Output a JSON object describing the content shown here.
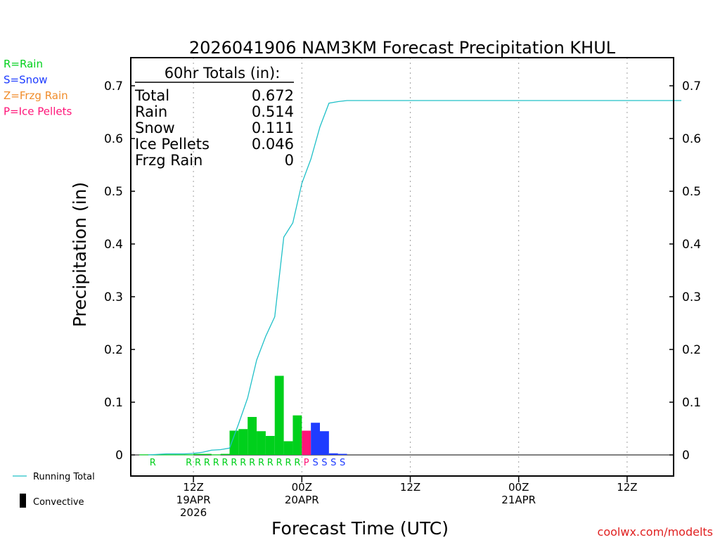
{
  "chart_data": {
    "type": "bar",
    "title": "2026041906 NAM3KM Forecast Precipitation KHUL",
    "xlabel": "Forecast Time (UTC)",
    "ylabel": "Precipitation (in)",
    "x_unit": "hours after 2026041906",
    "xlim": [
      0,
      60
    ],
    "ylim": [
      -0.04,
      0.74
    ],
    "y_ticks": [
      0,
      0.1,
      0.2,
      0.3,
      0.4,
      0.5,
      0.6,
      0.7
    ],
    "y_tick_labels": [
      "0",
      "0.1",
      "0.2",
      "0.3",
      "0.4",
      "0.5",
      "0.6",
      "0.7"
    ],
    "grid": "vertical dotted at 12Z/00Z",
    "x_ticks": [
      {
        "x": 6,
        "lines": [
          "12Z",
          "19APR",
          "2026"
        ]
      },
      {
        "x": 18,
        "lines": [
          "00Z",
          "20APR"
        ]
      },
      {
        "x": 30,
        "lines": [
          "12Z"
        ]
      },
      {
        "x": 42,
        "lines": [
          "00Z",
          "21APR"
        ]
      },
      {
        "x": 54,
        "lines": [
          "12Z"
        ]
      }
    ],
    "bars": [
      {
        "x": 1,
        "value": 0.001,
        "type": "rain"
      },
      {
        "x": 2,
        "value": 0.001,
        "type": "rain"
      },
      {
        "x": 3,
        "value": 0.001,
        "type": "rain"
      },
      {
        "x": 4,
        "value": 0.001,
        "type": "rain"
      },
      {
        "x": 5,
        "value": 0.001,
        "type": "rain"
      },
      {
        "x": 6,
        "value": 0.001,
        "type": "rain"
      },
      {
        "x": 7,
        "value": 0.002,
        "type": "rain"
      },
      {
        "x": 8,
        "value": 0.002,
        "type": "rain"
      },
      {
        "x": 9,
        "value": 0.001,
        "type": "rain"
      },
      {
        "x": 10,
        "value": 0.002,
        "type": "rain"
      },
      {
        "x": 11,
        "value": 0.046,
        "type": "rain"
      },
      {
        "x": 12,
        "value": 0.049,
        "type": "rain"
      },
      {
        "x": 13,
        "value": 0.072,
        "type": "rain"
      },
      {
        "x": 14,
        "value": 0.045,
        "type": "rain"
      },
      {
        "x": 15,
        "value": 0.036,
        "type": "rain"
      },
      {
        "x": 16,
        "value": 0.15,
        "type": "rain"
      },
      {
        "x": 17,
        "value": 0.026,
        "type": "rain"
      },
      {
        "x": 18,
        "value": 0.075,
        "type": "rain"
      },
      {
        "x": 19,
        "value": 0.046,
        "type": "ice_pellets"
      },
      {
        "x": 20,
        "value": 0.061,
        "type": "snow"
      },
      {
        "x": 21,
        "value": 0.045,
        "type": "snow"
      },
      {
        "x": 22,
        "value": 0.003,
        "type": "snow"
      },
      {
        "x": 23,
        "value": 0.002,
        "type": "snow"
      }
    ],
    "type_letters": [
      {
        "x": 2,
        "letter": "R",
        "type": "rain"
      },
      {
        "x": 6,
        "letter": "R",
        "type": "rain"
      },
      {
        "x": 7,
        "letter": "R",
        "type": "rain"
      },
      {
        "x": 8,
        "letter": "R",
        "type": "rain"
      },
      {
        "x": 9,
        "letter": "R",
        "type": "rain"
      },
      {
        "x": 10,
        "letter": "R",
        "type": "rain"
      },
      {
        "x": 11,
        "letter": "R",
        "type": "rain"
      },
      {
        "x": 12,
        "letter": "R",
        "type": "rain"
      },
      {
        "x": 13,
        "letter": "R",
        "type": "rain"
      },
      {
        "x": 14,
        "letter": "R",
        "type": "rain"
      },
      {
        "x": 15,
        "letter": "R",
        "type": "rain"
      },
      {
        "x": 16,
        "letter": "R",
        "type": "rain"
      },
      {
        "x": 17,
        "letter": "R",
        "type": "rain"
      },
      {
        "x": 18,
        "letter": "R",
        "type": "rain"
      },
      {
        "x": 19,
        "letter": "P",
        "type": "ice_pellets"
      },
      {
        "x": 20,
        "letter": "S",
        "type": "snow"
      },
      {
        "x": 21,
        "letter": "S",
        "type": "snow"
      },
      {
        "x": 22,
        "letter": "S",
        "type": "snow"
      },
      {
        "x": 23,
        "letter": "S",
        "type": "snow"
      }
    ],
    "running_total": {
      "name": "Running Total",
      "points": [
        [
          1,
          0.0
        ],
        [
          2,
          0.001
        ],
        [
          3,
          0.002
        ],
        [
          4,
          0.002
        ],
        [
          5,
          0.002
        ],
        [
          6,
          0.003
        ],
        [
          7,
          0.005
        ],
        [
          8,
          0.009
        ],
        [
          9,
          0.01
        ],
        [
          10,
          0.013
        ],
        [
          11,
          0.059
        ],
        [
          12,
          0.108
        ],
        [
          13,
          0.18
        ],
        [
          14,
          0.225
        ],
        [
          15,
          0.262
        ],
        [
          16,
          0.413
        ],
        [
          17,
          0.44
        ],
        [
          18,
          0.515
        ],
        [
          19,
          0.561
        ],
        [
          20,
          0.622
        ],
        [
          21,
          0.667
        ],
        [
          22,
          0.67
        ],
        [
          23,
          0.672
        ],
        [
          60,
          0.672
        ]
      ]
    },
    "totals_box": {
      "header": "60hr Totals (in):",
      "rows": [
        {
          "label": "Total",
          "value": "0.672"
        },
        {
          "label": "Rain",
          "value": "0.514"
        },
        {
          "label": "Snow",
          "value": "0.111"
        },
        {
          "label": "Ice Pellets",
          "value": "0.046"
        },
        {
          "label": "Frzg Rain",
          "value": "0"
        }
      ]
    },
    "type_legend": [
      {
        "text": "R=Rain",
        "type": "rain"
      },
      {
        "text": "S=Snow",
        "type": "snow"
      },
      {
        "text": "Z=Frzg Rain",
        "type": "freezing_rain"
      },
      {
        "text": "P=Ice Pellets",
        "type": "ice_pellets"
      }
    ],
    "bottom_legend": [
      {
        "text": "Running Total",
        "kind": "line"
      },
      {
        "text": "Convective",
        "kind": "box"
      }
    ],
    "credit": "coolwx.com/modelts"
  },
  "colors": {
    "rain": "#00d01c",
    "snow": "#1e3cff",
    "freezing_rain": "#f08c2a",
    "ice_pellets": "#ff1478",
    "running_total": "#20c0c8",
    "credit": "#e02020"
  }
}
